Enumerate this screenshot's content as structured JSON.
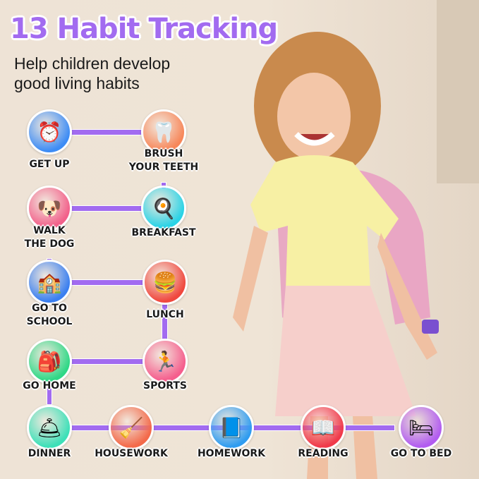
{
  "header": {
    "title": "13 Habit Tracking",
    "subtitle_line1": "Help children develop",
    "subtitle_line2": "good living habits"
  },
  "accent": "#a26bf0",
  "habits": [
    {
      "label": "GET UP",
      "icon": "alarm-clock-icon",
      "color": "#3d8cf5"
    },
    {
      "label": "BRUSH",
      "label2": "YOUR TEETH",
      "icon": "tooth-icon",
      "color": "#f7875a"
    },
    {
      "label": "WALK",
      "label2": "THE DOG",
      "icon": "dog-icon",
      "color": "#f2608a"
    },
    {
      "label": "BREAKFAST",
      "icon": "toast-icon",
      "color": "#2ad3e6"
    },
    {
      "label": "GO TO",
      "label2": "SCHOOL",
      "icon": "school-icon",
      "color": "#3a7ff0"
    },
    {
      "label": "LUNCH",
      "icon": "burger-icon",
      "color": "#f0483e"
    },
    {
      "label": "GO HOME",
      "icon": "backpack-icon",
      "color": "#2fd886"
    },
    {
      "label": "SPORTS",
      "icon": "running-icon",
      "color": "#f55e8d"
    },
    {
      "label": "DINNER",
      "icon": "cloche-icon",
      "color": "#3de0b8"
    },
    {
      "label": "HOUSEWORK",
      "icon": "broom-icon",
      "color": "#f36a4a"
    },
    {
      "label": "HOMEWORK",
      "icon": "notebook-icon",
      "color": "#2f9cf0"
    },
    {
      "label": "READING",
      "icon": "book-icon",
      "color": "#f0394a"
    },
    {
      "label": "GO TO BED",
      "icon": "bed-icon",
      "color": "#b25cf0"
    }
  ]
}
